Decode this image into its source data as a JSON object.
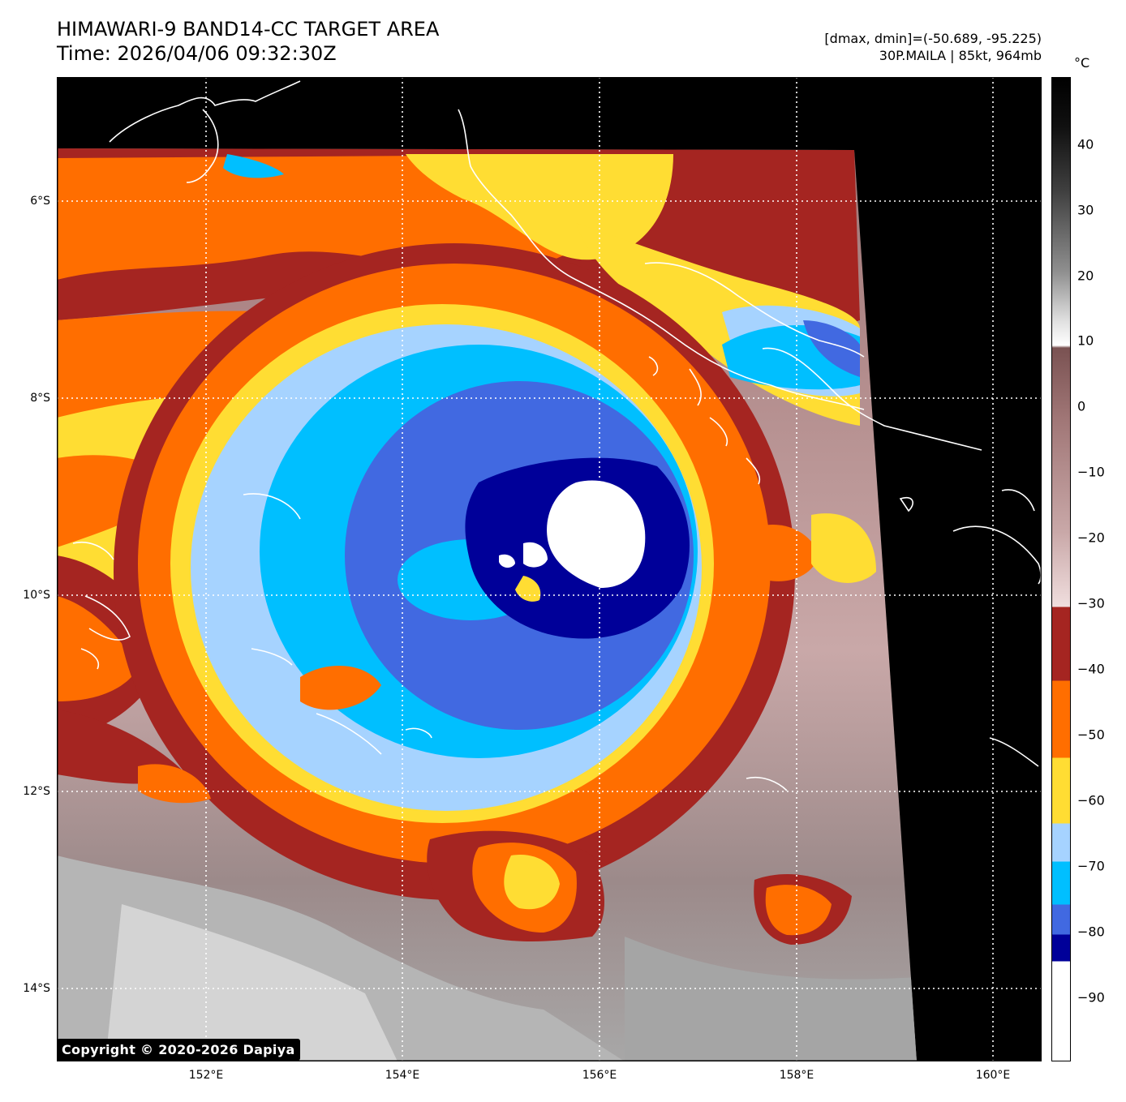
{
  "header": {
    "title": "HIMAWARI-9 BAND14-CC TARGET AREA",
    "time": "Time: 2026/04/06 09:32:30Z",
    "range": "[dmax, dmin]=(-50.689, -95.225)",
    "storm": "30P.MAILA | 85kt, 964mb"
  },
  "map": {
    "lat_labels": [
      "6°S",
      "8°S",
      "10°S",
      "12°S",
      "14°S"
    ],
    "lon_labels": [
      "152°E",
      "154°E",
      "156°E",
      "158°E",
      "160°E"
    ],
    "gridline_style": "dotted white",
    "no_data_color": "#000000",
    "coastline_color": "#ffffff"
  },
  "colorbar": {
    "unit": "°C",
    "ticks": [
      "40",
      "30",
      "20",
      "10",
      "0",
      "−10",
      "−20",
      "−30",
      "−40",
      "−50",
      "−60",
      "−70",
      "−80",
      "−90"
    ],
    "bands": [
      {
        "from": 10,
        "to": 50,
        "style": "grayscale"
      },
      {
        "from": -30,
        "to": 10,
        "style": "brown-to-pink gradient"
      },
      {
        "from": -40,
        "to": -30,
        "color": "#a52521"
      },
      {
        "from": -50,
        "to": -40,
        "color": "#ff6e00"
      },
      {
        "from": -60,
        "to": -50,
        "color": "#ffdd33"
      },
      {
        "from": -68,
        "to": -60,
        "color": "#a6d3ff"
      },
      {
        "from": -75,
        "to": -68,
        "color": "#00bfff"
      },
      {
        "from": -80,
        "to": -75,
        "color": "#4169e1"
      },
      {
        "from": -84,
        "to": -80,
        "color": "#000099"
      },
      {
        "from": -100,
        "to": -84,
        "color": "#ffffff"
      }
    ]
  },
  "footer": {
    "copyright": "Copyright © 2020-2026 Dapiya"
  }
}
